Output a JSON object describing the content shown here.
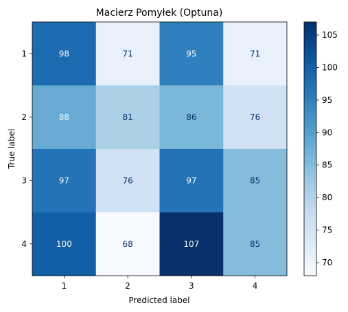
{
  "chart_data": {
    "type": "heatmap",
    "title": "Macierz Pomyłek (Optuna)",
    "xlabel": "Predicted label",
    "ylabel": "True label",
    "x_categories": [
      "1",
      "2",
      "3",
      "4"
    ],
    "y_categories": [
      "1",
      "2",
      "3",
      "4"
    ],
    "values": [
      [
        98,
        71,
        95,
        71
      ],
      [
        88,
        81,
        86,
        76
      ],
      [
        97,
        76,
        97,
        85
      ],
      [
        100,
        68,
        107,
        85
      ]
    ],
    "colormap": "Blues",
    "colorbar": {
      "range": [
        68,
        107
      ],
      "ticks": [
        70,
        75,
        80,
        85,
        90,
        95,
        100,
        105
      ]
    },
    "grid": false
  }
}
